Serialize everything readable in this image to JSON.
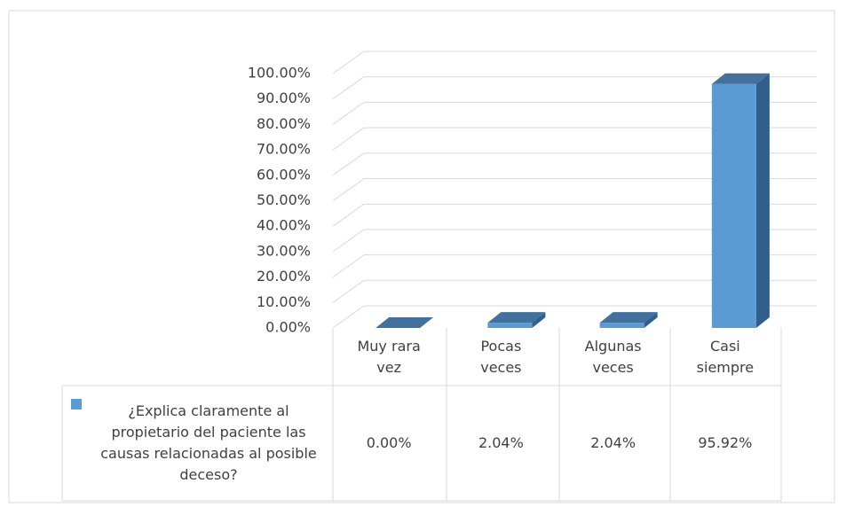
{
  "chart_data": {
    "type": "bar",
    "categories": [
      "Muy rara vez",
      "Pocas veces",
      "Algunas veces",
      "Casi siempre"
    ],
    "series": [
      {
        "name": "¿Explica claramente al propietario del paciente las causas relacionadas al posible deceso?",
        "color": "#5b9bd5",
        "values": [
          0,
          2.04,
          2.04,
          95.92
        ],
        "value_labels": [
          "0.00%",
          "2.04%",
          "2.04%",
          "95.92%"
        ]
      }
    ],
    "ylim": [
      0,
      100
    ],
    "yticks": [
      {
        "value": 0,
        "label": "0.00%"
      },
      {
        "value": 10,
        "label": "10.00%"
      },
      {
        "value": 20,
        "label": "20.00%"
      },
      {
        "value": 30,
        "label": "30.00%"
      },
      {
        "value": 40,
        "label": "40.00%"
      },
      {
        "value": 50,
        "label": "50.00%"
      },
      {
        "value": 60,
        "label": "60.00%"
      },
      {
        "value": 70,
        "label": "70.00%"
      },
      {
        "value": 80,
        "label": "80.00%"
      },
      {
        "value": 90,
        "label": "90.00%"
      },
      {
        "value": 100,
        "label": "100.00%"
      }
    ],
    "grid": true
  }
}
